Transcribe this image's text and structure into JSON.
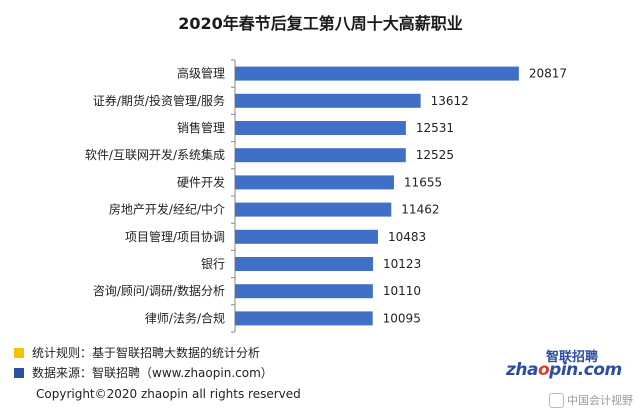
{
  "chart_data": {
    "type": "bar",
    "orientation": "horizontal",
    "title": "2020年春节后复工第八周十大高薪职业",
    "categories": [
      "高级管理",
      "证券/期货/投资管理/服务",
      "销售管理",
      "软件/互联网开发/系统集成",
      "硬件开发",
      "房地产开发/经纪/中介",
      "项目管理/项目协调",
      "银行",
      "咨询/顾问/调研/数据分析",
      "律师/法务/合规"
    ],
    "values": [
      20817,
      13612,
      12531,
      12525,
      11655,
      11462,
      10483,
      10123,
      10110,
      10095
    ],
    "xlim": [
      0,
      22000
    ],
    "grid": false,
    "bar_color": "#3f6fc6"
  },
  "notes": [
    {
      "text": "统计规则：基于智联招聘大数据的统计分析",
      "color": "#f5c400"
    },
    {
      "text": "数据来源：智联招聘（www.zhaopin.com）",
      "color": "#2e4fa3"
    }
  ],
  "copyright": "Copyright©2020 zhaopin all rights reserved",
  "logo": {
    "main": "zhaopin.com",
    "top": "智联招聘"
  },
  "watermark": "中国会计视野"
}
